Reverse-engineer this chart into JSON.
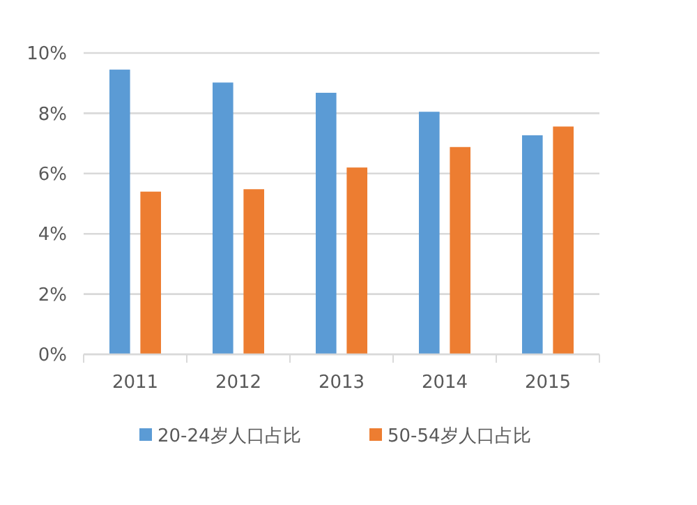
{
  "chart_data": {
    "type": "bar",
    "categories": [
      "2011",
      "2012",
      "2013",
      "2014",
      "2015"
    ],
    "series": [
      {
        "name": "20-24岁人口占比",
        "color": "#5b9bd5",
        "values": [
          9.45,
          9.02,
          8.68,
          8.05,
          7.27
        ]
      },
      {
        "name": "50-54岁人口占比",
        "color": "#ed7d31",
        "values": [
          5.4,
          5.48,
          6.2,
          6.88,
          7.56
        ]
      }
    ],
    "ylim": [
      0,
      10
    ],
    "yticks": [
      {
        "value": 0,
        "label": "0%"
      },
      {
        "value": 2,
        "label": "2%"
      },
      {
        "value": 4,
        "label": "4%"
      },
      {
        "value": 6,
        "label": "6%"
      },
      {
        "value": 8,
        "label": "8%"
      },
      {
        "value": 10,
        "label": "10%"
      }
    ],
    "grid": "y",
    "legend": "bottom"
  }
}
